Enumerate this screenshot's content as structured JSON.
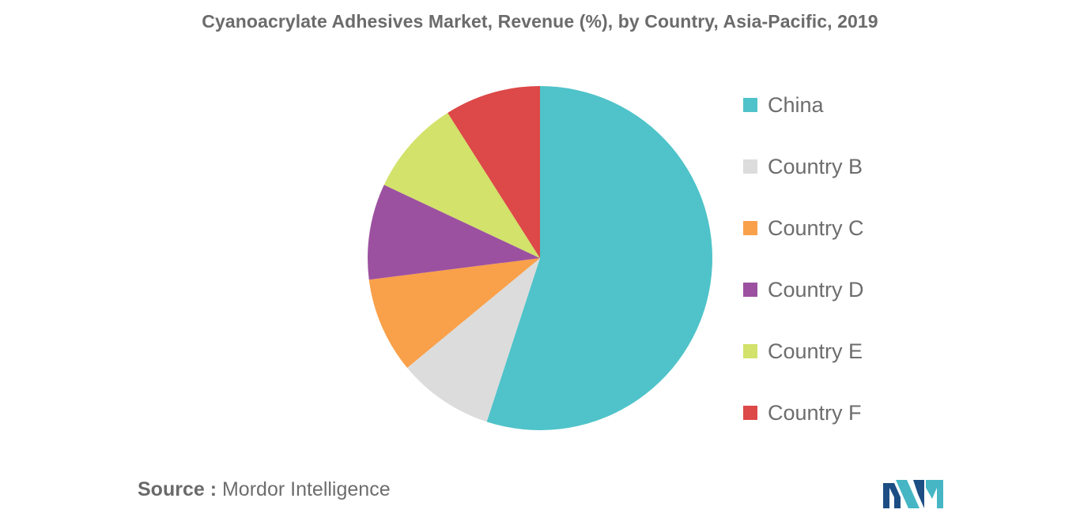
{
  "chart_data": {
    "type": "pie",
    "title": "Cyanoacrylate Adhesives Market, Revenue (%), by Country, Asia-Pacific, 2019",
    "slices": [
      {
        "label": "China",
        "value": 55.0,
        "color": "#4fc3c9"
      },
      {
        "label": "Country B",
        "value": 9.0,
        "color": "#dcdcdc"
      },
      {
        "label": "Country C",
        "value": 9.0,
        "color": "#f9a04a"
      },
      {
        "label": "Country D",
        "value": 9.0,
        "color": "#9c51a0"
      },
      {
        "label": "Country E",
        "value": 9.0,
        "color": "#d2e26a"
      },
      {
        "label": "Country F",
        "value": 9.0,
        "color": "#dd4848"
      }
    ],
    "legend_position": "right"
  },
  "source": {
    "key": "Source :",
    "value": "Mordor Intelligence"
  },
  "logo": {
    "name": "mordor-intelligence-logo",
    "colors": [
      "#1c4e84",
      "#46b6c5"
    ]
  }
}
